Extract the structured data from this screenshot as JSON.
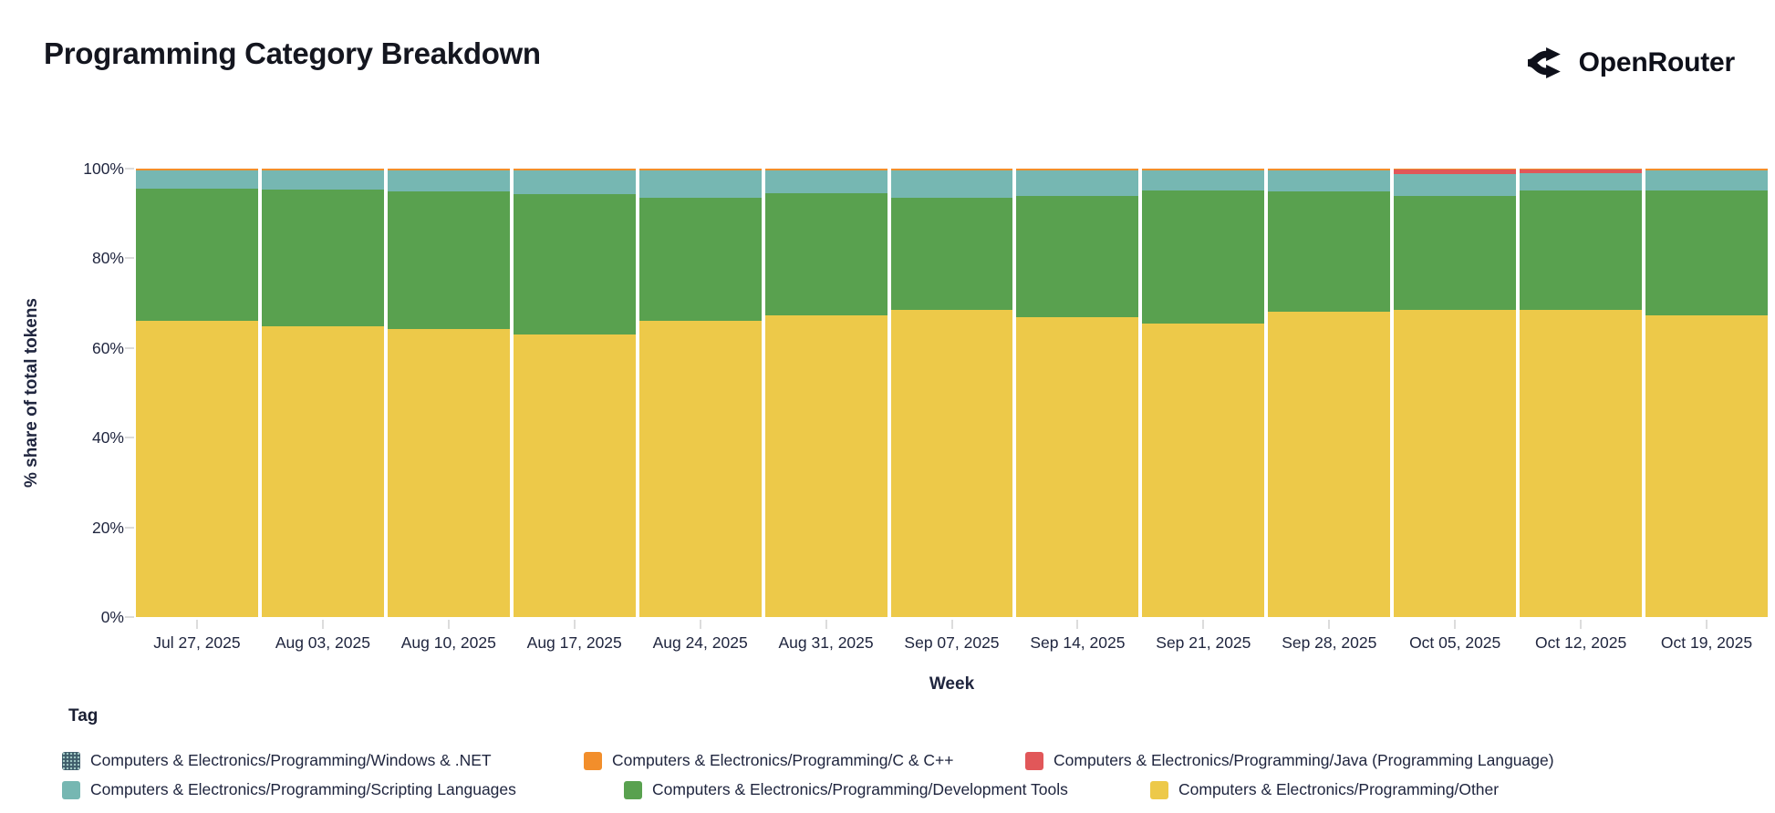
{
  "header": {
    "title": "Programming Category Breakdown",
    "brand": "OpenRouter"
  },
  "chart_data": {
    "type": "bar",
    "stacked": true,
    "normalized_to_100": true,
    "title": "Programming Category Breakdown",
    "xlabel": "Week",
    "ylabel": "% share of total tokens",
    "ylim": [
      0,
      100
    ],
    "yticks": [
      {
        "value": 0,
        "label": "0%"
      },
      {
        "value": 20,
        "label": "20%"
      },
      {
        "value": 40,
        "label": "40%"
      },
      {
        "value": 60,
        "label": "60%"
      },
      {
        "value": 80,
        "label": "80%"
      },
      {
        "value": 100,
        "label": "100%"
      }
    ],
    "grid": false,
    "legend_position": "bottom",
    "categories": [
      "Jul 27, 2025",
      "Aug 03, 2025",
      "Aug 10, 2025",
      "Aug 17, 2025",
      "Aug 24, 2025",
      "Aug 31, 2025",
      "Sep 07, 2025",
      "Sep 14, 2025",
      "Sep 21, 2025",
      "Sep 28, 2025",
      "Oct 05, 2025",
      "Oct 12, 2025",
      "Oct 19, 2025"
    ],
    "series": [
      {
        "name": "Computers & Electronics/Programming/Other",
        "color": "#edc949",
        "values": [
          66.0,
          64.9,
          64.3,
          63.0,
          66.0,
          67.2,
          68.5,
          66.8,
          65.4,
          68.0,
          68.4,
          68.6,
          67.2
        ]
      },
      {
        "name": "Computers & Electronics/Programming/Development Tools",
        "color": "#59a14f",
        "values": [
          29.6,
          30.4,
          30.7,
          31.3,
          27.6,
          27.3,
          25.0,
          27.2,
          29.7,
          26.9,
          25.5,
          26.5,
          27.9
        ]
      },
      {
        "name": "Computers & Electronics/Programming/Scripting Languages",
        "color": "#76b7b2",
        "values": [
          4.05,
          4.35,
          4.65,
          5.35,
          6.05,
          5.15,
          6.15,
          5.65,
          4.55,
          4.75,
          4.85,
          3.95,
          4.55
        ]
      },
      {
        "name": "Computers & Electronics/Programming/Java (Programming Language)",
        "color": "#e15759",
        "values": [
          0,
          0,
          0,
          0,
          0,
          0,
          0,
          0,
          0,
          0,
          1.0,
          0.7,
          0
        ]
      },
      {
        "name": "Computers & Electronics/Programming/C & C++",
        "color": "#f28e2b",
        "values": [
          0.3,
          0.3,
          0.3,
          0.3,
          0.3,
          0.3,
          0.3,
          0.3,
          0.3,
          0.3,
          0.2,
          0.2,
          0.3
        ]
      },
      {
        "name": "Computers & Electronics/Programming/Windows & .NET",
        "color": "#3f5d6b",
        "values": [
          0.05,
          0.05,
          0.05,
          0.05,
          0.05,
          0.05,
          0.05,
          0.05,
          0.05,
          0.05,
          0.05,
          0.05,
          0.05
        ]
      }
    ]
  },
  "legend": {
    "title": "Tag",
    "items": [
      {
        "label": "Computers & Electronics/Programming/Windows & .NET",
        "color": "#3f5d6b",
        "pattern": true,
        "x": 68,
        "row": 0
      },
      {
        "label": "Computers & Electronics/Programming/C & C++",
        "color": "#f28e2b",
        "pattern": false,
        "x": 640,
        "row": 0
      },
      {
        "label": "Computers & Electronics/Programming/Java (Programming Language)",
        "color": "#e15759",
        "pattern": false,
        "x": 1124,
        "row": 0
      },
      {
        "label": "Computers & Electronics/Programming/Scripting Languages",
        "color": "#76b7b2",
        "pattern": false,
        "x": 68,
        "row": 1
      },
      {
        "label": "Computers & Electronics/Programming/Development Tools",
        "color": "#59a14f",
        "pattern": false,
        "x": 684,
        "row": 1
      },
      {
        "label": "Computers & Electronics/Programming/Other",
        "color": "#edc949",
        "pattern": false,
        "x": 1261,
        "row": 1
      }
    ]
  }
}
